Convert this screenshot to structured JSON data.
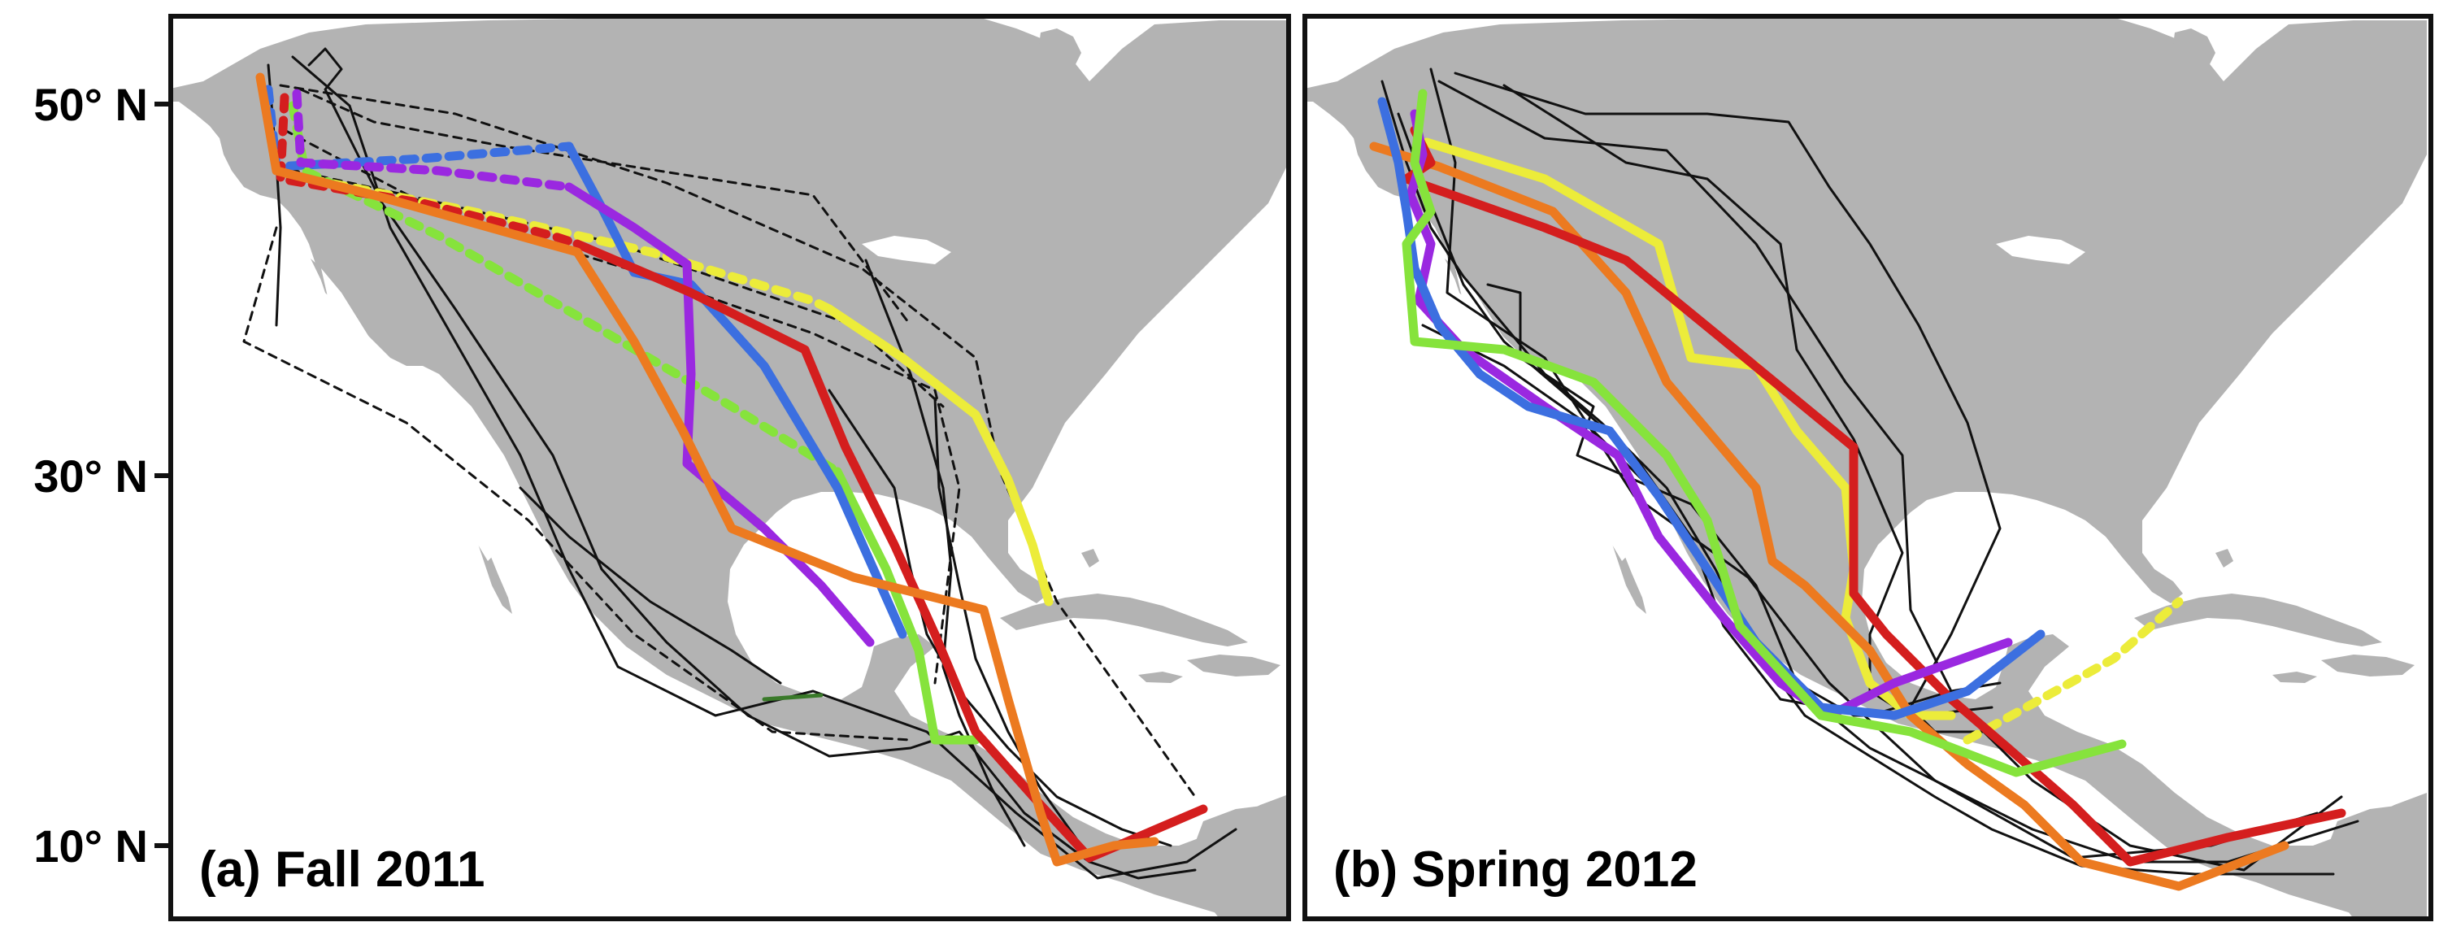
{
  "figure": {
    "latitude_ticks": [
      "50° N",
      "30° N",
      "10° N"
    ],
    "panels": [
      {
        "id": "a",
        "label": "(a) Fall 2011"
      },
      {
        "id": "b",
        "label": "(b) Spring 2012"
      }
    ]
  },
  "colors": {
    "land": "#b3b3b3",
    "water": "#ffffff",
    "black": "#111111",
    "red": "#d41e1e",
    "orange": "#ec7a20",
    "yellow": "#ecec3a",
    "green": "#86e33c",
    "darkgreen": "#3a7a2a",
    "blue": "#3c6fe0",
    "purple": "#9a28e0"
  }
}
